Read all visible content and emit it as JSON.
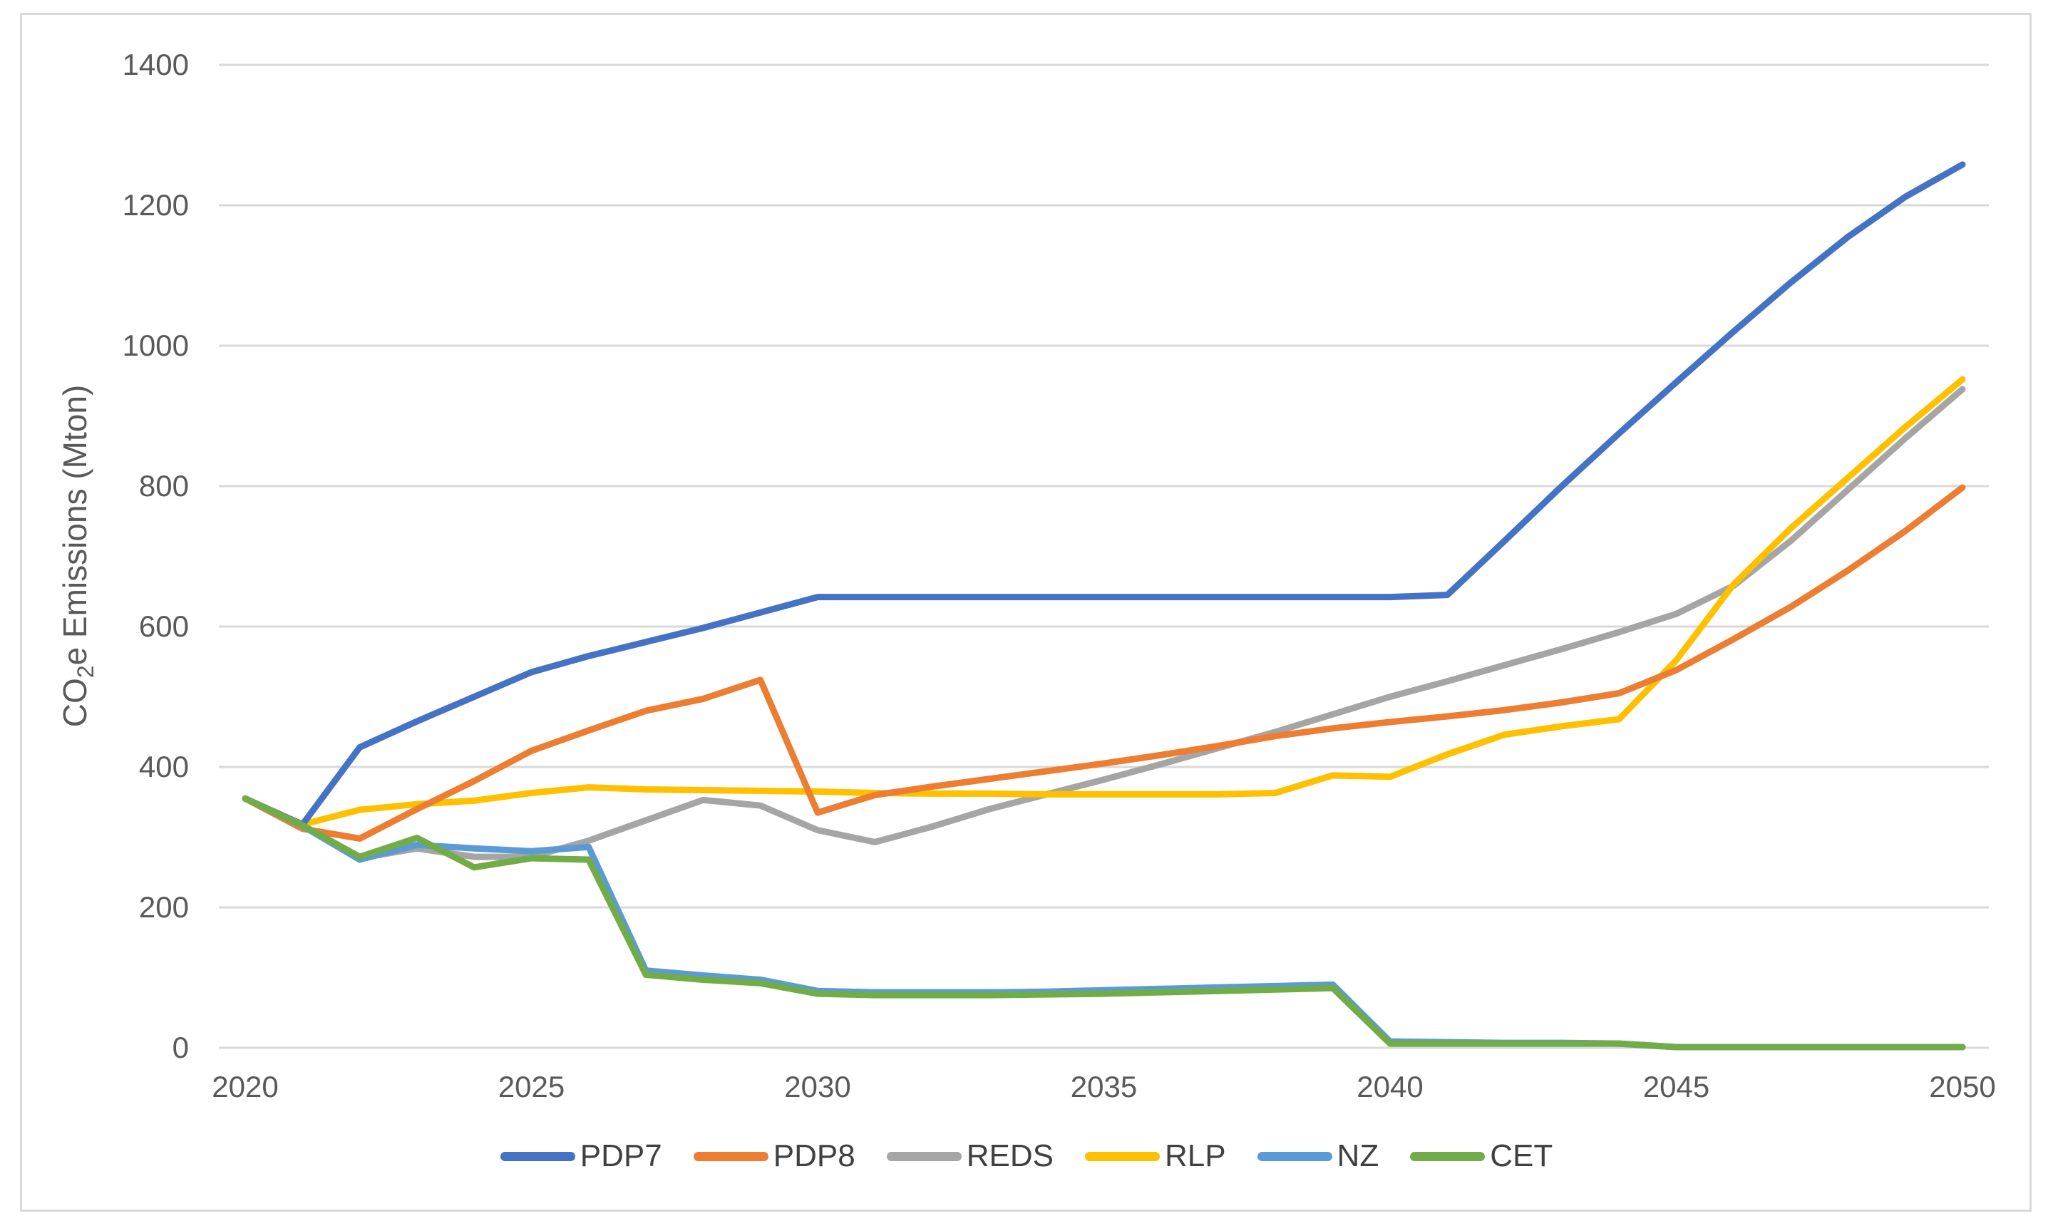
{
  "window": {
    "background_color": "#ffffff",
    "border_color": "#d9d9d9"
  },
  "chart_data": {
    "type": "line",
    "title": "",
    "xlabel": "",
    "ylabel": "CO2e Emissions (Mton)",
    "ylabel_pre": "CO",
    "ylabel_sub": "2",
    "ylabel_post": "e Emissions (Mton)",
    "grid": true,
    "legend_position": "bottom",
    "axis_text_color": "#595959",
    "legend_text_color": "#404040",
    "gridline_color": "#d9d9d9",
    "xlim": [
      2020,
      2050
    ],
    "ylim": [
      0,
      1400
    ],
    "x_ticks": [
      2020,
      2025,
      2030,
      2035,
      2040,
      2045,
      2050
    ],
    "y_ticks": [
      0,
      200,
      400,
      600,
      800,
      1000,
      1200,
      1400
    ],
    "x": [
      2020,
      2021,
      2022,
      2023,
      2024,
      2025,
      2026,
      2027,
      2028,
      2029,
      2030,
      2031,
      2032,
      2033,
      2034,
      2035,
      2036,
      2037,
      2038,
      2039,
      2040,
      2041,
      2042,
      2043,
      2044,
      2045,
      2046,
      2047,
      2048,
      2049,
      2050
    ],
    "series": [
      {
        "name": "PDP7",
        "color": "#4472C4",
        "values": [
          355,
          318,
          428,
          465,
          500,
          535,
          558,
          578,
          598,
          620,
          642,
          642,
          642,
          642,
          642,
          642,
          642,
          642,
          642,
          642,
          642,
          645,
          722,
          800,
          875,
          948,
          1020,
          1090,
          1155,
          1212,
          1258
        ]
      },
      {
        "name": "PDP8",
        "color": "#ED7D31",
        "values": [
          355,
          312,
          298,
          340,
          380,
          423,
          452,
          480,
          497,
          524,
          335,
          360,
          372,
          383,
          394,
          405,
          417,
          430,
          444,
          455,
          464,
          472,
          481,
          492,
          505,
          538,
          582,
          628,
          680,
          736,
          798
        ]
      },
      {
        "name": "REDS",
        "color": "#A5A5A5",
        "values": [
          355,
          316,
          270,
          284,
          272,
          272,
          295,
          324,
          353,
          345,
          310,
          293,
          315,
          340,
          361,
          382,
          404,
          427,
          450,
          475,
          500,
          522,
          545,
          568,
          592,
          618,
          658,
          722,
          795,
          868,
          938
        ]
      },
      {
        "name": "RLP",
        "color": "#FFC000",
        "values": [
          355,
          318,
          339,
          347,
          352,
          363,
          371,
          368,
          367,
          366,
          365,
          363,
          362,
          362,
          361,
          361,
          361,
          361,
          363,
          388,
          386,
          418,
          446,
          458,
          468,
          552,
          660,
          740,
          812,
          884,
          952
        ]
      },
      {
        "name": "NZ",
        "color": "#5B9BD5",
        "values": [
          355,
          316,
          268,
          289,
          284,
          280,
          286,
          110,
          103,
          97,
          81,
          79,
          79,
          79,
          80,
          82,
          84,
          86,
          88,
          90,
          9,
          8,
          7,
          7,
          6,
          1,
          1,
          1,
          1,
          1,
          1
        ]
      },
      {
        "name": "CET",
        "color": "#70AD47",
        "values": [
          355,
          317,
          272,
          299,
          257,
          270,
          268,
          104,
          97,
          92,
          77,
          75,
          75,
          75,
          76,
          77,
          79,
          81,
          83,
          85,
          6,
          6,
          6,
          6,
          6,
          1,
          1,
          1,
          1,
          1,
          1
        ]
      }
    ],
    "draw_order": [
      "REDS",
      "RLP",
      "PDP8",
      "PDP7",
      "NZ",
      "CET"
    ]
  }
}
